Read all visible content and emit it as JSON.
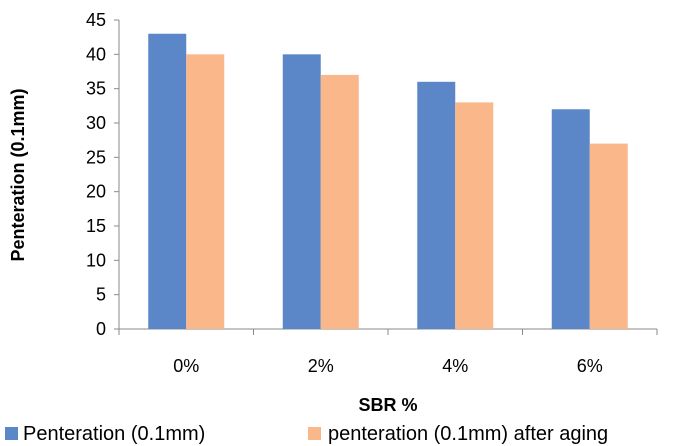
{
  "chart_data": {
    "type": "bar",
    "categories": [
      "0%",
      "2%",
      "4%",
      "6%"
    ],
    "series": [
      {
        "name": "Penteration (0.1mm)",
        "values": [
          43,
          40,
          36,
          32
        ],
        "color": "#5B87C8"
      },
      {
        "name": "penteration (0.1mm) after aging",
        "values": [
          40,
          37,
          33,
          27
        ],
        "color": "#F9B78A"
      }
    ],
    "title": "",
    "xlabel": "SBR %",
    "ylabel": "Penteration (0.1mm)",
    "ylim": [
      0,
      45
    ],
    "yticks": [
      0,
      5,
      10,
      15,
      20,
      25,
      30,
      35,
      40,
      45
    ],
    "grid": false,
    "legend_position": "bottom"
  }
}
